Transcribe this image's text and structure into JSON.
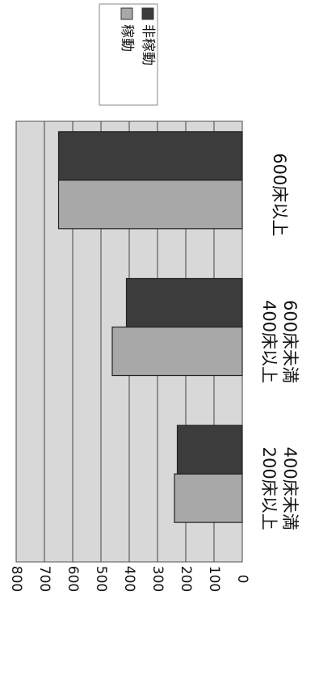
{
  "chart_data": {
    "type": "bar",
    "orientation": "rotated-90-clockwise",
    "categories": [
      [
        "200床以上",
        "400床未満"
      ],
      [
        "400床以上",
        "600床未満"
      ],
      [
        "600床以上"
      ]
    ],
    "series": [
      {
        "name": "稼動",
        "values": [
          240,
          460,
          650
        ],
        "color": "#a8a8a8"
      },
      {
        "name": "非稼動",
        "values": [
          230,
          410,
          650
        ],
        "color": "#3c3c3c"
      }
    ],
    "ylim": [
      0,
      800
    ],
    "yticks": [
      "0",
      "100",
      "200",
      "300",
      "400",
      "500",
      "600",
      "700",
      "800"
    ],
    "grid": true,
    "legend_position": "top-right",
    "plot_background": "#d8d8d8"
  }
}
